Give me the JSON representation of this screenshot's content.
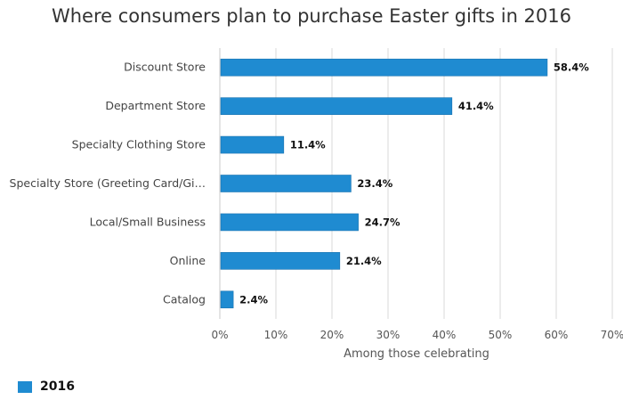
{
  "chart_data": {
    "type": "bar",
    "orientation": "horizontal",
    "title": "Where consumers plan to purchase Easter gifts in 2016",
    "categories": [
      "Discount Store",
      "Department Store",
      "Specialty Clothing Store",
      "Specialty Store (Greeting Card/Gi…",
      "Local/Small Business",
      "Online",
      "Catalog"
    ],
    "series": [
      {
        "name": "2016",
        "values": [
          58.4,
          41.4,
          11.4,
          23.4,
          24.7,
          21.4,
          2.4
        ],
        "data_labels": [
          "58.4%",
          "41.4%",
          "11.4%",
          "23.4%",
          "24.7%",
          "21.4%",
          "2.4%"
        ]
      }
    ],
    "xlabel": "Among those celebrating",
    "ylabel": "",
    "xlim": [
      0,
      70
    ],
    "x_ticks": [
      0,
      10,
      20,
      30,
      40,
      50,
      60,
      70
    ],
    "x_tick_labels": [
      "0%",
      "10%",
      "20%",
      "30%",
      "40%",
      "50%",
      "60%",
      "70%"
    ],
    "grid": true,
    "legend_position": "bottom-left",
    "colors": {
      "bar": "#1f8bd1",
      "grid": "#d9d9d9"
    }
  }
}
